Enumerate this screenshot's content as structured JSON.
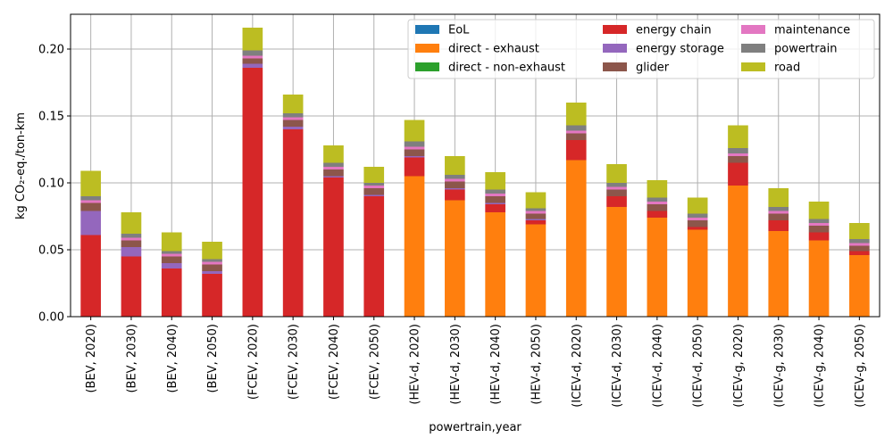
{
  "chart_data": {
    "type": "bar",
    "stacked": true,
    "categories": [
      "(BEV, 2020)",
      "(BEV, 2030)",
      "(BEV, 2040)",
      "(BEV, 2050)",
      "(FCEV, 2020)",
      "(FCEV, 2030)",
      "(FCEV, 2040)",
      "(FCEV, 2050)",
      "(HEV-d, 2020)",
      "(HEV-d, 2030)",
      "(HEV-d, 2040)",
      "(HEV-d, 2050)",
      "(ICEV-d, 2020)",
      "(ICEV-d, 2030)",
      "(ICEV-d, 2040)",
      "(ICEV-d, 2050)",
      "(ICEV-g, 2020)",
      "(ICEV-g, 2030)",
      "(ICEV-g, 2040)",
      "(ICEV-g, 2050)"
    ],
    "series": [
      {
        "name": "EoL",
        "color": "#1f77b4",
        "values": [
          0,
          0,
          0,
          0,
          0,
          0,
          0,
          0,
          0,
          0,
          0,
          0,
          0,
          0,
          0,
          0,
          0,
          0,
          0,
          0
        ]
      },
      {
        "name": "direct - exhaust",
        "color": "#ff7f0e",
        "values": [
          0,
          0,
          0,
          0,
          0,
          0,
          0,
          0,
          0.105,
          0.087,
          0.078,
          0.069,
          0.117,
          0.082,
          0.074,
          0.065,
          0.098,
          0.064,
          0.057,
          0.046
        ]
      },
      {
        "name": "direct - non-exhaust",
        "color": "#2ca02c",
        "values": [
          0,
          0,
          0,
          0,
          0,
          0,
          0,
          0,
          0,
          0,
          0,
          0,
          0,
          0,
          0,
          0,
          0,
          0,
          0,
          0
        ]
      },
      {
        "name": "energy chain",
        "color": "#d62728",
        "values": [
          0.061,
          0.045,
          0.036,
          0.032,
          0.186,
          0.14,
          0.104,
          0.09,
          0.014,
          0.008,
          0.006,
          0.003,
          0.015,
          0.008,
          0.005,
          0.002,
          0.017,
          0.008,
          0.006,
          0.003
        ]
      },
      {
        "name": "energy storage",
        "color": "#9467bd",
        "values": [
          0.018,
          0.007,
          0.004,
          0.002,
          0.003,
          0.002,
          0.001,
          0.001,
          0.001,
          0.001,
          0.001,
          0.001,
          0,
          0,
          0,
          0,
          0,
          0,
          0,
          0
        ]
      },
      {
        "name": "glider",
        "color": "#8c564b",
        "values": [
          0.006,
          0.005,
          0.005,
          0.005,
          0.004,
          0.005,
          0.005,
          0.005,
          0.005,
          0.005,
          0.005,
          0.004,
          0.005,
          0.005,
          0.005,
          0.005,
          0.005,
          0.005,
          0.005,
          0.004
        ]
      },
      {
        "name": "maintenance",
        "color": "#e377c2",
        "values": [
          0.002,
          0.002,
          0.002,
          0.002,
          0.002,
          0.002,
          0.002,
          0.002,
          0.002,
          0.002,
          0.002,
          0.002,
          0.002,
          0.002,
          0.002,
          0.002,
          0.002,
          0.002,
          0.002,
          0.002
        ]
      },
      {
        "name": "powertrain",
        "color": "#7f7f7f",
        "values": [
          0.003,
          0.003,
          0.002,
          0.002,
          0.004,
          0.003,
          0.003,
          0.002,
          0.004,
          0.003,
          0.003,
          0.002,
          0.004,
          0.003,
          0.003,
          0.003,
          0.004,
          0.003,
          0.003,
          0.003
        ]
      },
      {
        "name": "road",
        "color": "#bcbd22",
        "values": [
          0.019,
          0.016,
          0.014,
          0.013,
          0.017,
          0.014,
          0.013,
          0.012,
          0.016,
          0.014,
          0.013,
          0.012,
          0.017,
          0.014,
          0.013,
          0.012,
          0.017,
          0.014,
          0.013,
          0.012
        ]
      }
    ],
    "xlabel": "powertrain,year",
    "ylabel": "kg CO₂-eq./ton-km",
    "ylim": [
      0,
      0.226
    ],
    "yticks": [
      0.0,
      0.05,
      0.1,
      0.15,
      0.2
    ],
    "ytick_labels": [
      "0.00",
      "0.05",
      "0.10",
      "0.15",
      "0.20"
    ],
    "grid": true,
    "legend": {
      "position": "top-right",
      "columns": 3
    }
  }
}
